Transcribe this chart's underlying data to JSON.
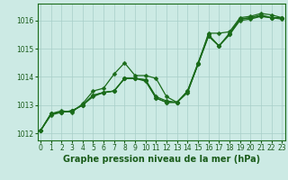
{
  "title": "Graphe pression niveau de la mer (hPa)",
  "hours": [
    0,
    1,
    2,
    3,
    4,
    5,
    6,
    7,
    8,
    9,
    10,
    11,
    12,
    13,
    14,
    15,
    16,
    17,
    18,
    19,
    20,
    21,
    22,
    23
  ],
  "ylim": [
    1011.75,
    1016.6
  ],
  "yticks": [
    1012,
    1013,
    1014,
    1015,
    1016
  ],
  "xlim": [
    -0.3,
    23.3
  ],
  "bg_color": "#cceae4",
  "line_color": "#1a6b1a",
  "grid_color": "#a8cec8",
  "series": [
    [
      1012.1,
      1012.7,
      1012.8,
      1012.75,
      1013.05,
      1013.5,
      1013.6,
      1014.1,
      1014.5,
      1014.05,
      1014.05,
      1013.95,
      1013.3,
      1013.1,
      1013.45,
      1014.45,
      1015.55,
      1015.55,
      1015.6,
      1016.1,
      1016.15,
      1016.25,
      1016.2,
      1016.1
    ],
    [
      1012.1,
      1012.7,
      1012.75,
      1012.8,
      1013.0,
      1013.35,
      1013.45,
      1013.5,
      1013.95,
      1013.95,
      1013.9,
      1013.3,
      1013.15,
      1013.1,
      1013.5,
      1014.5,
      1015.5,
      1015.1,
      1015.55,
      1016.05,
      1016.1,
      1016.2,
      1016.1,
      1016.1
    ],
    [
      1012.1,
      1012.7,
      1012.75,
      1012.8,
      1013.0,
      1013.35,
      1013.45,
      1013.5,
      1013.95,
      1013.95,
      1013.9,
      1013.25,
      1013.1,
      1013.1,
      1013.5,
      1014.45,
      1015.45,
      1015.1,
      1015.5,
      1016.05,
      1016.1,
      1016.15,
      1016.1,
      1016.1
    ],
    [
      1012.1,
      1012.65,
      1012.75,
      1012.8,
      1013.0,
      1013.3,
      1013.45,
      1013.5,
      1013.95,
      1013.95,
      1013.85,
      1013.25,
      1013.1,
      1013.1,
      1013.45,
      1014.45,
      1015.45,
      1015.1,
      1015.5,
      1016.0,
      1016.05,
      1016.15,
      1016.1,
      1016.05
    ]
  ],
  "marker": "D",
  "marker_size": 2.5,
  "line_width": 0.9,
  "font_color": "#1a5c1a",
  "tick_fontsize": 5.5,
  "title_fontsize": 7
}
